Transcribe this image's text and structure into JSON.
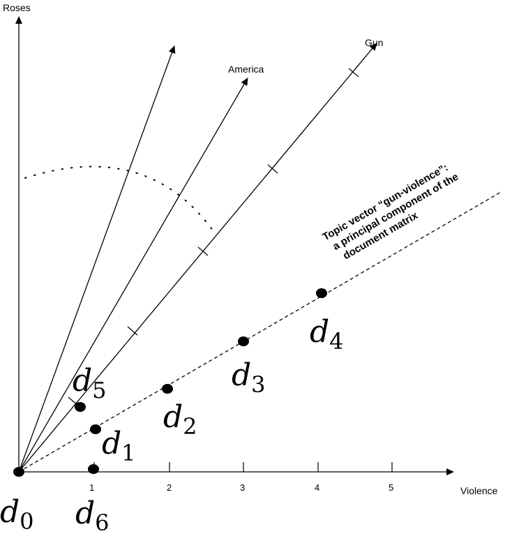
{
  "axes": {
    "x_label": "Violence",
    "y_label": "Roses",
    "x_ticks": [
      "1",
      "2",
      "3",
      "4",
      "5"
    ]
  },
  "vectors": [
    {
      "name": "arrow-unlabeled",
      "label": ""
    },
    {
      "name": "arrow-america",
      "label": "America"
    },
    {
      "name": "arrow-gun",
      "label": "Gun"
    }
  ],
  "topic_annotation": {
    "lines": [
      "Topic vector “gun-violence”:",
      "a principal component of the",
      "document matrix"
    ]
  },
  "documents": [
    {
      "id": "d0",
      "base": "d",
      "sub": "0"
    },
    {
      "id": "d1",
      "base": "d",
      "sub": "1"
    },
    {
      "id": "d2",
      "base": "d",
      "sub": "2"
    },
    {
      "id": "d3",
      "base": "d",
      "sub": "3"
    },
    {
      "id": "d4",
      "base": "d",
      "sub": "4"
    },
    {
      "id": "d5",
      "base": "d",
      "sub": "5"
    },
    {
      "id": "d6",
      "base": "d",
      "sub": "6"
    }
  ]
}
